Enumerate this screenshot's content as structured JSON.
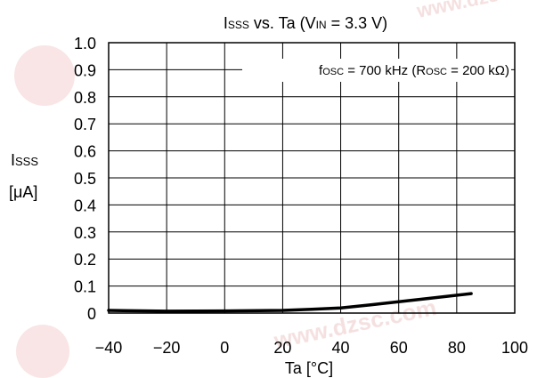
{
  "chart_data": {
    "type": "line",
    "title": {
      "main": "I",
      "main_sub": "SSS",
      "rest": " vs. Ta (V",
      "rest_sub": "IN",
      "end": " = 3.3 V)"
    },
    "annotation": {
      "p1": "f",
      "p1_sub": "OSC",
      "p2": " = 700 kHz (R",
      "p2_sub": "OSC",
      "p3": " = 200 kΩ)"
    },
    "ylabel": {
      "main": "I",
      "sub": "SSS",
      "unit": "[μA]"
    },
    "xlabel": "Ta [°C]",
    "xlim": [
      -40,
      100
    ],
    "ylim": [
      0,
      1.0
    ],
    "x_ticks": [
      -40,
      -20,
      0,
      20,
      40,
      60,
      80,
      100
    ],
    "x_tick_labels": [
      "−40",
      "−20",
      "0",
      "20",
      "40",
      "60",
      "80",
      "100"
    ],
    "y_ticks": [
      0,
      0.1,
      0.2,
      0.3,
      0.4,
      0.5,
      0.6,
      0.7,
      0.8,
      0.9,
      1.0
    ],
    "y_tick_labels": [
      "0",
      "0.1",
      "0.2",
      "0.3",
      "0.4",
      "0.5",
      "0.6",
      "0.7",
      "0.8",
      "0.9",
      "1.0"
    ],
    "grid": true,
    "series": [
      {
        "x": [
          -40,
          -20,
          0,
          20,
          30,
          40,
          50,
          60,
          70,
          85
        ],
        "y": [
          0.01,
          0.007,
          0.008,
          0.01,
          0.014,
          0.019,
          0.03,
          0.042,
          0.054,
          0.072
        ],
        "color": "#000000"
      }
    ],
    "watermark_text": "www.dzsc.com",
    "watermark_color": "#e8b9b9"
  }
}
